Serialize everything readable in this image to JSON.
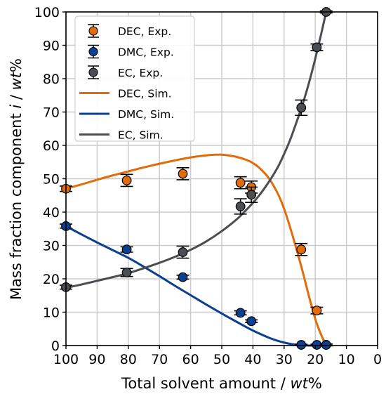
{
  "chart_data": {
    "type": "scatter",
    "xlabel": "Total solvent amount / ",
    "xlabel_italic": "wt",
    "xlabel_suffix": "%",
    "ylabel": "Mass fraction component ",
    "ylabel_italic_i": "i",
    "ylabel_sep": " / ",
    "ylabel_italic": "wt",
    "ylabel_suffix": "%",
    "xlim": [
      100,
      0
    ],
    "ylim": [
      0,
      100
    ],
    "x_reversed": true,
    "x_ticks": [
      100,
      90,
      80,
      70,
      60,
      50,
      40,
      30,
      20,
      10,
      0
    ],
    "y_ticks": [
      0,
      10,
      20,
      30,
      40,
      50,
      60,
      70,
      80,
      90,
      100
    ],
    "grid": true,
    "legend_position": "top-left",
    "colors": {
      "DEC": "#e36c0a",
      "DMC": "#0b3f8f",
      "EC": "#4a4d52"
    },
    "series": [
      {
        "name": "DEC, Exp.",
        "kind": "exp",
        "color": "#e36c0a",
        "points": [
          {
            "x": 100,
            "y": 47.0,
            "err": 0.8
          },
          {
            "x": 80.5,
            "y": 49.5,
            "err": 1.8
          },
          {
            "x": 62.5,
            "y": 51.5,
            "err": 1.8
          },
          {
            "x": 44,
            "y": 48.8,
            "err": 1.8
          },
          {
            "x": 40.5,
            "y": 47.5,
            "err": 1.8
          },
          {
            "x": 24.5,
            "y": 28.8,
            "err": 1.8
          },
          {
            "x": 19.5,
            "y": 10.5,
            "err": 1.0
          },
          {
            "x": 16.5,
            "y": 0.2,
            "err": 0.3
          }
        ]
      },
      {
        "name": "DMC, Exp.",
        "kind": "exp",
        "color": "#0b3f8f",
        "points": [
          {
            "x": 100,
            "y": 35.8,
            "err": 0.6
          },
          {
            "x": 80.5,
            "y": 28.8,
            "err": 0.8
          },
          {
            "x": 62.5,
            "y": 20.5,
            "err": 0.6
          },
          {
            "x": 44,
            "y": 9.8,
            "err": 0.6
          },
          {
            "x": 40.5,
            "y": 7.3,
            "err": 0.4
          },
          {
            "x": 24.5,
            "y": 0.2,
            "err": 0.2
          },
          {
            "x": 19.5,
            "y": 0.2,
            "err": 0.2
          },
          {
            "x": 16.5,
            "y": 0.2,
            "err": 0.2
          }
        ]
      },
      {
        "name": "EC, Exp.",
        "kind": "exp",
        "color": "#4a4d52",
        "points": [
          {
            "x": 100,
            "y": 17.5,
            "err": 0.6
          },
          {
            "x": 80.5,
            "y": 21.9,
            "err": 1.2
          },
          {
            "x": 62.5,
            "y": 28.0,
            "err": 1.8
          },
          {
            "x": 44,
            "y": 41.7,
            "err": 2.3
          },
          {
            "x": 40.5,
            "y": 45.2,
            "err": 2.3
          },
          {
            "x": 24.5,
            "y": 71.3,
            "err": 2.3
          },
          {
            "x": 19.5,
            "y": 89.4,
            "err": 1.0
          },
          {
            "x": 16.5,
            "y": 100,
            "err": 0.3
          }
        ]
      },
      {
        "name": "DEC, Sim.",
        "kind": "sim",
        "color": "#e36c0a",
        "x": [
          100,
          95,
          90,
          85,
          80,
          75,
          70,
          65,
          60,
          55,
          52,
          50,
          48,
          45,
          42,
          40,
          38,
          35,
          32,
          30,
          28,
          26,
          24,
          22,
          20,
          19,
          18,
          17,
          16.5
        ],
        "y": [
          47.0,
          48.3,
          49.7,
          51.0,
          52.2,
          53.4,
          54.5,
          55.5,
          56.4,
          57.0,
          57.2,
          57.2,
          57.0,
          56.5,
          55.6,
          54.7,
          53.3,
          50.3,
          45.5,
          41.0,
          35.2,
          28.8,
          22.0,
          14.7,
          8.0,
          5.3,
          3.0,
          1.0,
          0.0
        ]
      },
      {
        "name": "DMC, Sim.",
        "kind": "sim",
        "color": "#0b3f8f",
        "x": [
          100,
          95,
          90,
          85,
          80,
          75,
          70,
          65,
          60,
          55,
          50,
          45,
          40,
          35,
          32,
          30,
          28,
          26,
          25,
          24,
          22,
          20,
          18,
          16.5
        ],
        "y": [
          35.8,
          33.3,
          30.9,
          28.6,
          26.3,
          23.6,
          20.8,
          17.9,
          15.1,
          12.3,
          9.6,
          7.0,
          4.5,
          2.4,
          1.4,
          0.9,
          0.5,
          0.2,
          0.1,
          0.05,
          0.0,
          0.0,
          0.0,
          0.0
        ]
      },
      {
        "name": "EC, Sim.",
        "kind": "sim",
        "color": "#4a4d52",
        "x": [
          100,
          95,
          90,
          85,
          80,
          75,
          70,
          65,
          60,
          55,
          50,
          45,
          42,
          40,
          38,
          35,
          32,
          30,
          28,
          26,
          24,
          22,
          20,
          18,
          16.5
        ],
        "y": [
          17.3,
          18.3,
          19.4,
          20.5,
          21.7,
          23.2,
          24.8,
          26.6,
          28.7,
          31.2,
          34.3,
          38.0,
          40.8,
          42.8,
          45.0,
          48.9,
          53.5,
          57.4,
          61.8,
          67.0,
          72.5,
          78.8,
          86.0,
          93.8,
          100
        ]
      }
    ]
  }
}
